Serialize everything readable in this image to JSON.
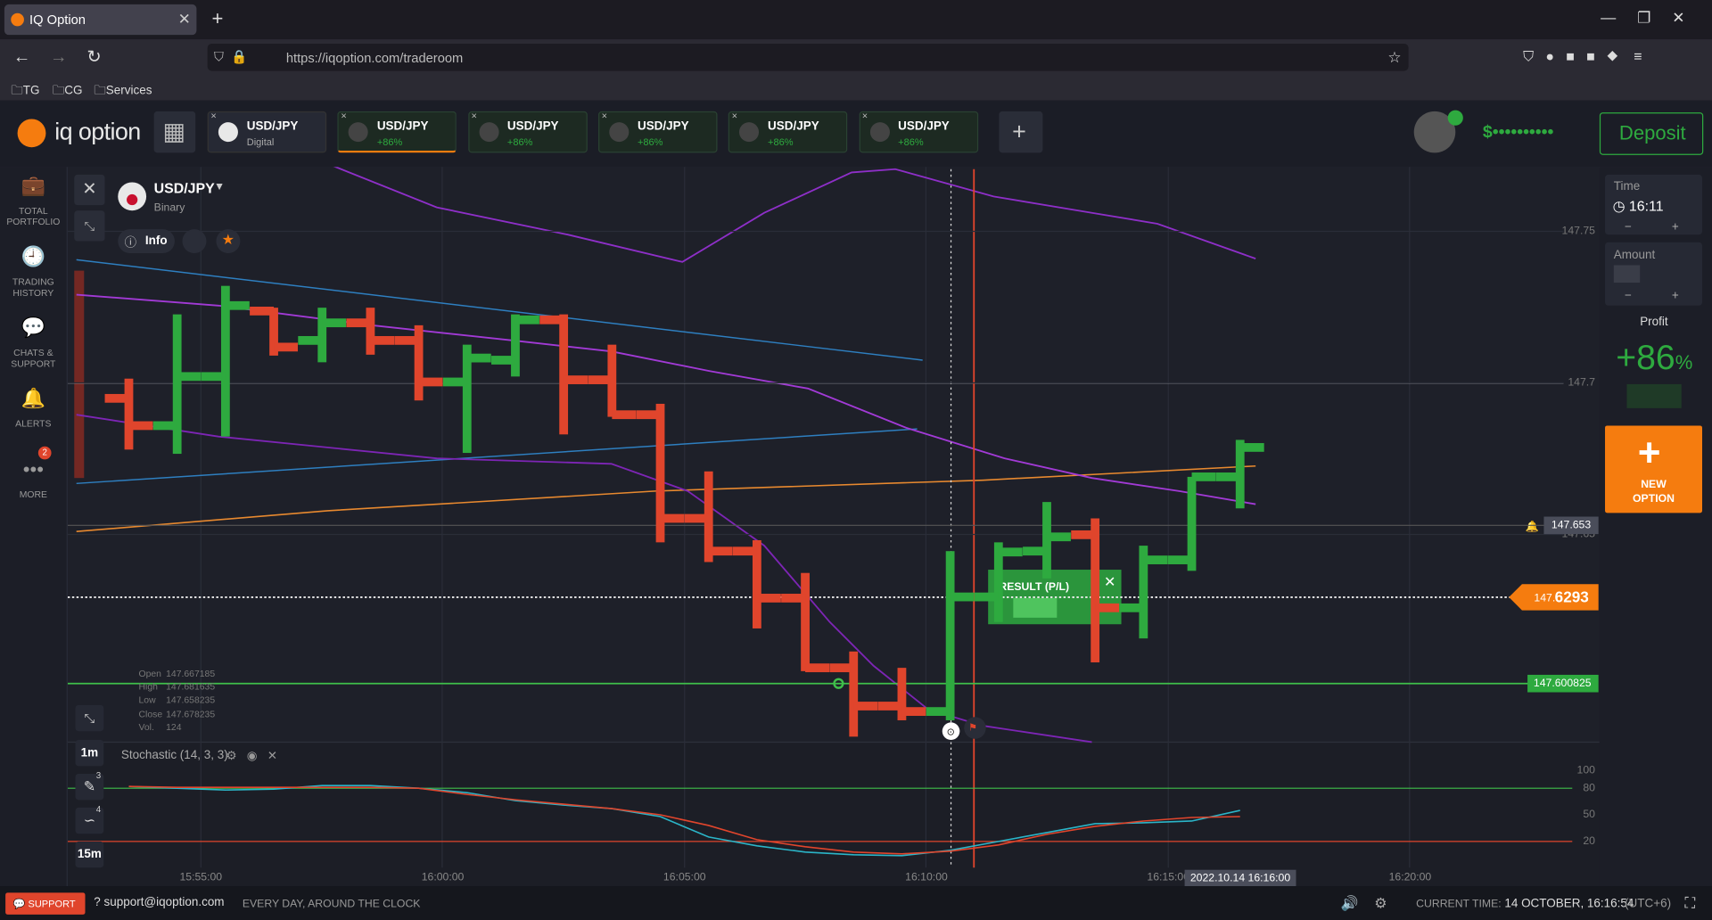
{
  "browser": {
    "tab_title": "IQ Option",
    "url": "https://iqoption.com/traderoom",
    "bookmarks": [
      "TG",
      "CG",
      "Services"
    ]
  },
  "header": {
    "logo": "iq option",
    "asset_tabs": [
      {
        "name": "USD/JPY",
        "detail": "Digital"
      },
      {
        "name": "USD/JPY",
        "detail": "+86%"
      },
      {
        "name": "USD/JPY",
        "detail": "+86%"
      },
      {
        "name": "USD/JPY",
        "detail": "+86%"
      },
      {
        "name": "USD/JPY",
        "detail": "+86%"
      },
      {
        "name": "USD/JPY",
        "detail": "+86%"
      }
    ],
    "balance": "$••••••••••",
    "deposit": "Deposit"
  },
  "sidebar": {
    "items": [
      "TOTAL PORTFOLIO",
      "TRADING HISTORY",
      "CHATS & SUPPORT",
      "ALERTS",
      "MORE"
    ],
    "more_badge": "2"
  },
  "asset": {
    "name": "USD/JPY",
    "type": "Binary",
    "info": "Info"
  },
  "chart": {
    "type": "ohlc",
    "up_color": "#2eaa3f",
    "down_color": "#e0452c",
    "ylim": [
      147.5815,
      147.7705
    ],
    "yticks": [
      147.65,
      147.7,
      147.75
    ],
    "xticks": [
      "15:55:00",
      "16:00:00",
      "16:05:00",
      "16:10:00",
      "16:15:00",
      "16:20:00"
    ],
    "crosshair_time": "2022.10.14 16:16:00",
    "candles": [
      {
        "open": 147.6949,
        "high": 147.7014,
        "low": 147.678,
        "close": 147.6859
      },
      {
        "open": 147.6859,
        "high": 147.7226,
        "low": 147.6766,
        "close": 147.7021
      },
      {
        "open": 147.7021,
        "high": 147.732,
        "low": 147.6823,
        "close": 147.7255
      },
      {
        "open": 147.7237,
        "high": 147.7248,
        "low": 147.709,
        "close": 147.7118
      },
      {
        "open": 147.714,
        "high": 147.7248,
        "low": 147.7068,
        "close": 147.7198
      },
      {
        "open": 147.7198,
        "high": 147.7248,
        "low": 147.7093,
        "close": 147.714
      },
      {
        "open": 147.714,
        "high": 147.719,
        "low": 147.6942,
        "close": 147.7003
      },
      {
        "open": 147.7003,
        "high": 147.7126,
        "low": 147.6769,
        "close": 147.7082
      },
      {
        "open": 147.7075,
        "high": 147.7226,
        "low": 147.7021,
        "close": 147.7208
      },
      {
        "open": 147.7208,
        "high": 147.7226,
        "low": 147.683,
        "close": 147.701
      },
      {
        "open": 147.701,
        "high": 147.7126,
        "low": 147.6888,
        "close": 147.6895
      },
      {
        "open": 147.6895,
        "high": 147.6931,
        "low": 147.6474,
        "close": 147.6553
      },
      {
        "open": 147.6553,
        "high": 147.6708,
        "low": 147.6409,
        "close": 147.6445
      },
      {
        "open": 147.6445,
        "high": 147.6481,
        "low": 147.619,
        "close": 147.629
      },
      {
        "open": 147.629,
        "high": 147.6373,
        "low": 147.6049,
        "close": 147.606
      },
      {
        "open": 147.606,
        "high": 147.6114,
        "low": 147.5833,
        "close": 147.5934
      },
      {
        "open": 147.5934,
        "high": 147.606,
        "low": 147.5887,
        "close": 147.5916
      },
      {
        "open": 147.5916,
        "high": 147.6445,
        "low": 147.5887,
        "close": 147.6294
      },
      {
        "open": 147.6294,
        "high": 147.6474,
        "low": 147.6211,
        "close": 147.6442
      },
      {
        "open": 147.6445,
        "high": 147.6607,
        "low": 147.6355,
        "close": 147.6492
      },
      {
        "open": 147.6499,
        "high": 147.6553,
        "low": 147.6078,
        "close": 147.6258
      },
      {
        "open": 147.6258,
        "high": 147.6463,
        "low": 147.6157,
        "close": 147.6416
      },
      {
        "open": 147.6416,
        "high": 147.669,
        "low": 147.638,
        "close": 147.669
      },
      {
        "open": 147.669,
        "high": 147.6812,
        "low": 147.6586,
        "close": 147.6787
      }
    ],
    "alert_price": 147.653,
    "current_price": 147.6293,
    "current_price_prefix": "147.",
    "current_price_suffix": "6293",
    "strike_price": 147.600825,
    "ohlc_info": {
      "labels": [
        "Open",
        "High",
        "Low",
        "Close",
        "Vol."
      ],
      "values": [
        "147.667185",
        "147.681635",
        "147.658235",
        "147.678235",
        "124"
      ]
    },
    "result_label": "RESULT (P/L)",
    "timeframes": [
      "1m",
      "15m"
    ],
    "tool_badges": [
      "3",
      "4"
    ]
  },
  "stochastic": {
    "label": "Stochastic (14, 3, 3)",
    "ylim": [
      0,
      100
    ],
    "yticks": [
      20,
      50,
      80,
      100
    ],
    "levels": [
      {
        "value": 80,
        "color": "#3fbf4a"
      },
      {
        "value": 20,
        "color": "#e0452c"
      }
    ],
    "series": [
      {
        "color": "#2bb5c8",
        "values": [
          82,
          80,
          78,
          79,
          83,
          83,
          80,
          75,
          66,
          61,
          57,
          48,
          25,
          15,
          8,
          5,
          4,
          10,
          20,
          30,
          40,
          41,
          43,
          55
        ]
      },
      {
        "color": "#e0452c",
        "values": [
          82,
          81,
          81,
          81,
          81,
          81,
          80,
          73,
          67,
          62,
          57,
          50,
          38,
          22,
          14,
          8,
          6,
          9,
          16,
          28,
          37,
          43,
          47,
          48
        ]
      }
    ]
  },
  "right_panel": {
    "time_label": "Time",
    "time": "16:11",
    "amount_label": "Amount",
    "profit_label": "Profit",
    "profit": "+86",
    "profit_unit": "%",
    "new_option": "NEW OPTION"
  },
  "footer": {
    "support": "SUPPORT",
    "email": "support@iqoption.com",
    "hours": "EVERY DAY, AROUND THE CLOCK",
    "current_time_label": "CURRENT TIME:",
    "current_time": "14 OCTOBER, 16:16:54",
    "timezone": "(UTC+6)"
  }
}
